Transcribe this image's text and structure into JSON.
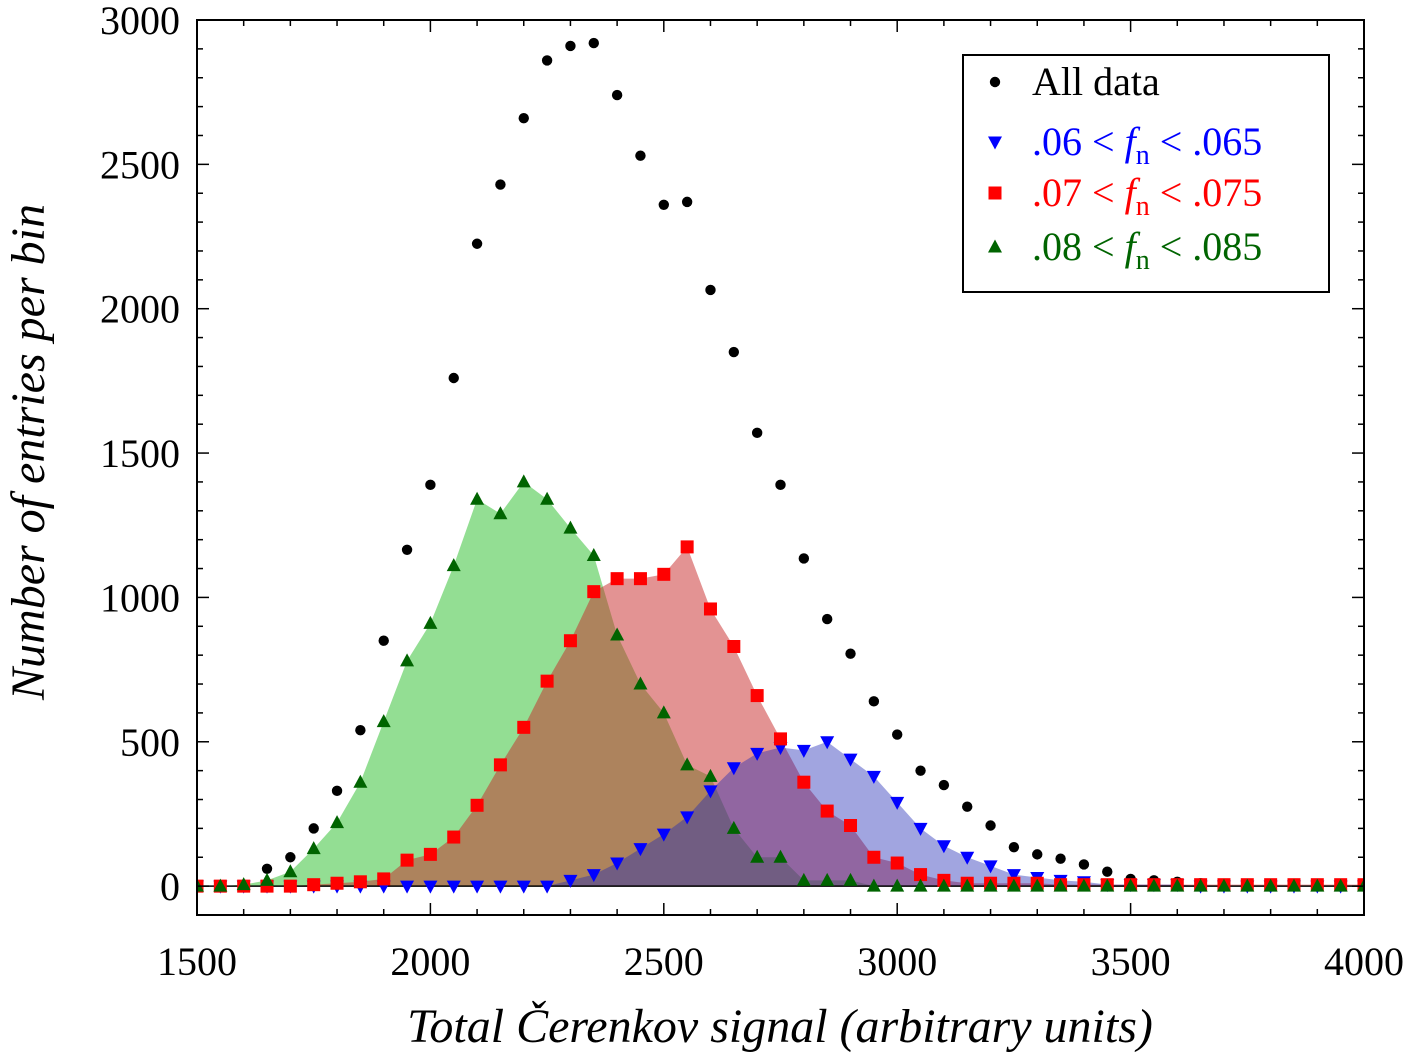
{
  "chart_data": {
    "type": "scatter",
    "xlabel": "Total Čerenkov signal (arbitrary units)",
    "ylabel": "Number of entries per bin",
    "xlim": [
      1500,
      4000
    ],
    "ylim": [
      -100,
      3000
    ],
    "x_ticks": [
      "1500",
      "2000",
      "2500",
      "3000",
      "3500",
      "4000"
    ],
    "y_ticks": [
      "0",
      "500",
      "1000",
      "1500",
      "2000",
      "2500",
      "3000"
    ],
    "grid": false,
    "legend_position": "top-right",
    "legend": [
      {
        "series": 0,
        "text": "All data",
        "marker": "circle",
        "color": "#000000"
      },
      {
        "series": 1,
        "prefix": ".06 < ",
        "var": "f",
        "sub": "n",
        "suffix": " < .065",
        "marker": "triangle-down",
        "color": "#0000ff"
      },
      {
        "series": 2,
        "prefix": ".07 < ",
        "var": "f",
        "sub": "n",
        "suffix": " < .075",
        "marker": "square",
        "color": "#ff0000"
      },
      {
        "series": 3,
        "prefix": ".08 < ",
        "var": "f",
        "sub": "n",
        "suffix": " < .085",
        "marker": "triangle-up",
        "color": "#006400"
      }
    ],
    "x": [
      1500,
      1550,
      1600,
      1650,
      1700,
      1750,
      1800,
      1850,
      1900,
      1950,
      2000,
      2050,
      2100,
      2150,
      2200,
      2250,
      2300,
      2350,
      2400,
      2450,
      2500,
      2550,
      2600,
      2650,
      2700,
      2750,
      2800,
      2850,
      2900,
      2950,
      3000,
      3050,
      3100,
      3150,
      3200,
      3250,
      3300,
      3350,
      3400,
      3450,
      3500,
      3550,
      3600,
      3650,
      3700,
      3750,
      3800,
      3850,
      3900,
      3950,
      4000
    ],
    "series": [
      {
        "name": "All data",
        "marker": "circle",
        "color": "#000000",
        "fill": null,
        "values": [
          0,
          0,
          5,
          60,
          100,
          200,
          330,
          540,
          850,
          1165,
          1390,
          1760,
          2225,
          2430,
          2660,
          2860,
          2910,
          2920,
          2740,
          2530,
          2360,
          2370,
          2065,
          1850,
          1570,
          1390,
          1135,
          925,
          805,
          640,
          525,
          400,
          350,
          275,
          210,
          135,
          110,
          95,
          75,
          50,
          25,
          20,
          15,
          10,
          5,
          5,
          5,
          5,
          5,
          5,
          5
        ]
      },
      {
        "name": ".06 < fn < .065",
        "marker": "triangle-down",
        "color": "#0000ff",
        "fill": "rgba(30,40,180,0.42)",
        "values": [
          0,
          0,
          0,
          0,
          0,
          0,
          0,
          0,
          0,
          0,
          0,
          0,
          0,
          0,
          0,
          0,
          20,
          40,
          80,
          130,
          180,
          240,
          330,
          410,
          460,
          480,
          470,
          500,
          440,
          380,
          290,
          200,
          140,
          100,
          70,
          40,
          30,
          20,
          15,
          5,
          5,
          5,
          5,
          0,
          0,
          0,
          0,
          0,
          0,
          0,
          0
        ]
      },
      {
        "name": ".07 < fn < .075",
        "marker": "square",
        "color": "#ff0000",
        "fill": "rgba(200,40,40,0.50)",
        "values": [
          0,
          0,
          0,
          0,
          0,
          5,
          10,
          15,
          25,
          90,
          110,
          170,
          280,
          420,
          550,
          710,
          850,
          1020,
          1065,
          1065,
          1080,
          1175,
          960,
          830,
          660,
          510,
          360,
          260,
          210,
          100,
          80,
          40,
          20,
          10,
          10,
          10,
          10,
          5,
          5,
          5,
          5,
          5,
          5,
          5,
          5,
          5,
          5,
          5,
          5,
          5,
          5
        ]
      },
      {
        "name": ".08 < fn < .085",
        "marker": "triangle-up",
        "color": "#006400",
        "fill": "rgba(40,190,40,0.50)",
        "values": [
          0,
          0,
          5,
          20,
          50,
          130,
          220,
          360,
          570,
          780,
          910,
          1110,
          1340,
          1290,
          1400,
          1340,
          1240,
          1145,
          870,
          700,
          600,
          420,
          380,
          200,
          100,
          100,
          20,
          20,
          20,
          0,
          0,
          0,
          0,
          0,
          0,
          0,
          0,
          0,
          0,
          0,
          0,
          0,
          0,
          0,
          0,
          0,
          0,
          0,
          0,
          0,
          0
        ]
      }
    ]
  }
}
